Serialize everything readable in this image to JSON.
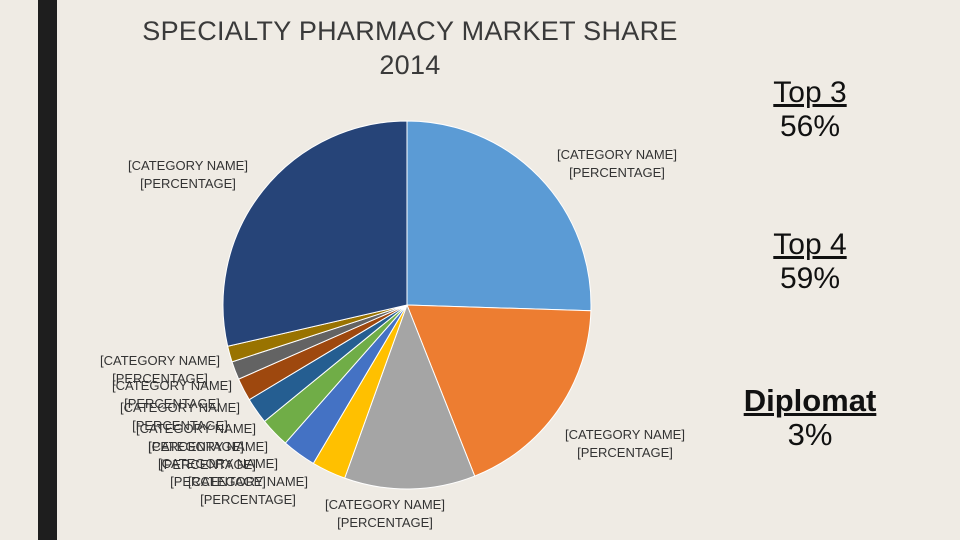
{
  "chart_data": {
    "type": "pie",
    "title": "SPECIALTY PHARMACY MARKET SHARE 2014",
    "slice_label_template": [
      "[CATEGORY NAME]",
      "[PERCENTAGE]"
    ],
    "slices": [
      {
        "value": 25.5,
        "color": "#5b9bd5"
      },
      {
        "value": 18.5,
        "color": "#ed7d31"
      },
      {
        "value": 11.5,
        "color": "#a5a5a5"
      },
      {
        "value": 3.0,
        "color": "#ffc000"
      },
      {
        "value": 3.0,
        "color": "#4472c4"
      },
      {
        "value": 2.6,
        "color": "#70ad47"
      },
      {
        "value": 2.3,
        "color": "#255e91"
      },
      {
        "value": 2.0,
        "color": "#9e480e"
      },
      {
        "value": 1.6,
        "color": "#636363"
      },
      {
        "value": 1.4,
        "color": "#997300"
      },
      {
        "value": 28.6,
        "color": "#264478"
      }
    ]
  },
  "stats": {
    "top3": {
      "label": "Top 3",
      "value": "56%"
    },
    "top4": {
      "label": "Top 4",
      "value": "59%"
    },
    "diplomat": {
      "label": "Diplomat",
      "value": "3%"
    }
  }
}
